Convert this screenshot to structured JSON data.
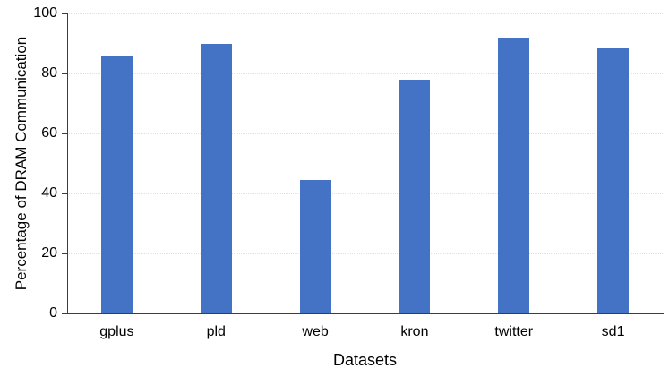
{
  "chart_data": {
    "type": "bar",
    "categories": [
      "gplus",
      "pld",
      "web",
      "kron",
      "twitter",
      "sd1"
    ],
    "values": [
      86,
      90,
      44.5,
      78,
      92,
      88.5
    ],
    "title": "",
    "xlabel": "Datasets",
    "ylabel": "Percentage of DRAM Communication",
    "ylim": [
      0,
      100
    ],
    "yticks": [
      0,
      20,
      40,
      60,
      80,
      100
    ],
    "grid": true,
    "legend": "none",
    "bar_color": "#4472C4",
    "axis_color": "#3d3d3d",
    "gridline_color": "#e2e2e2",
    "text_color": "#000000"
  }
}
